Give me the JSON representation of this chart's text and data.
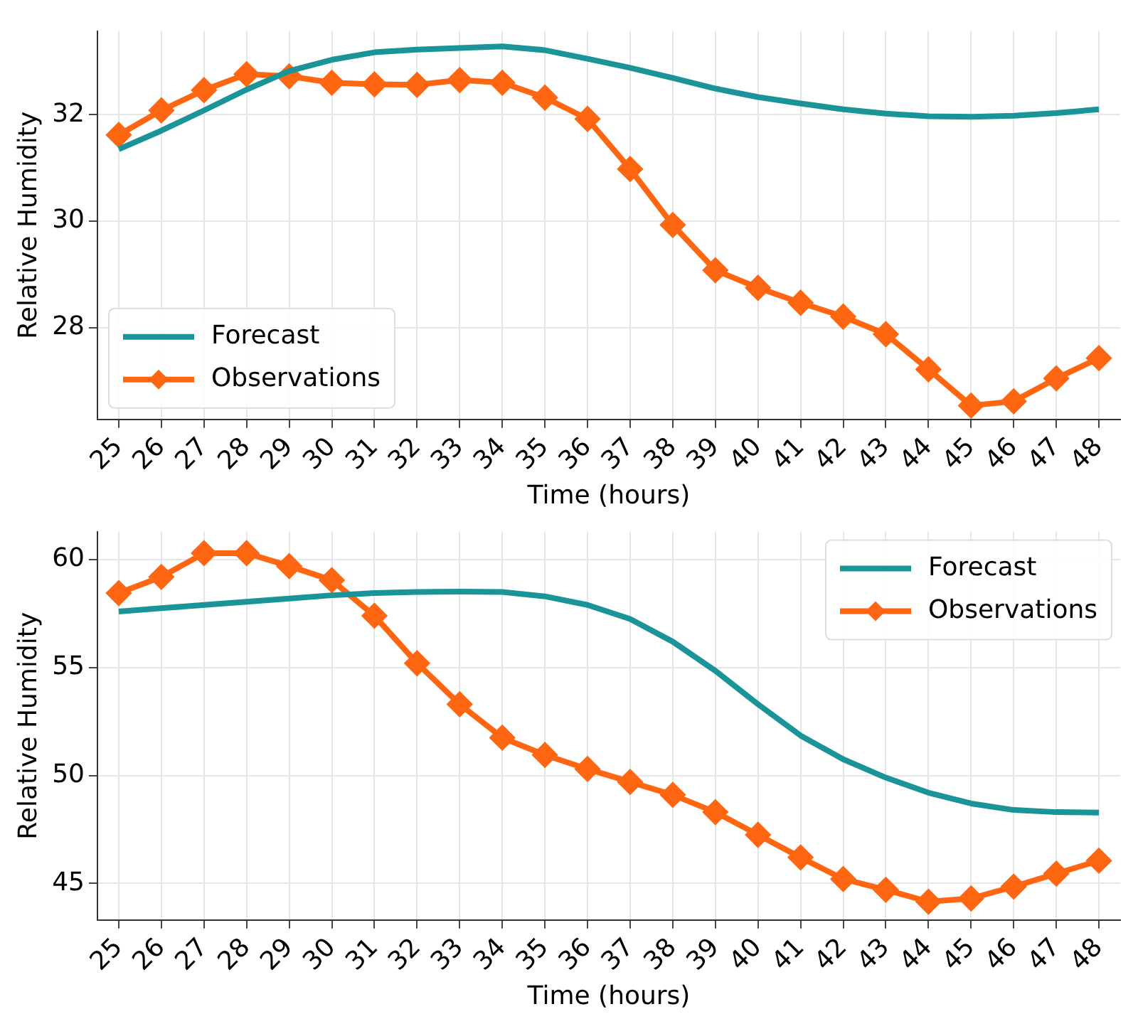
{
  "chart_data": [
    {
      "type": "line",
      "xlabel": "Time (hours)",
      "ylabel": "Relative Humidity",
      "categories": [
        "25",
        "26",
        "27",
        "28",
        "29",
        "30",
        "31",
        "32",
        "33",
        "34",
        "35",
        "36",
        "37",
        "38",
        "39",
        "40",
        "41",
        "42",
        "43",
        "44",
        "45",
        "46",
        "47",
        "48"
      ],
      "ylim": [
        26.28,
        33.57
      ],
      "yticks": [
        28,
        30,
        32
      ],
      "grid": true,
      "legend": "bottom left",
      "series": [
        {
          "name": "Forecast",
          "color": "#1a9399",
          "marker": "none",
          "values": [
            31.35,
            31.7,
            32.08,
            32.47,
            32.82,
            33.03,
            33.17,
            33.22,
            33.25,
            33.28,
            33.21,
            33.05,
            32.88,
            32.69,
            32.49,
            32.33,
            32.21,
            32.1,
            32.02,
            31.97,
            31.96,
            31.98,
            32.03,
            32.1
          ]
        },
        {
          "name": "Observations",
          "color": "#ff6611",
          "marker": "diamond",
          "values": [
            31.62,
            32.08,
            32.46,
            32.76,
            32.72,
            32.6,
            32.57,
            32.56,
            32.65,
            32.6,
            32.32,
            31.92,
            30.98,
            29.93,
            29.08,
            28.75,
            28.47,
            28.21,
            27.88,
            27.22,
            26.54,
            26.62,
            27.05,
            27.43
          ]
        }
      ]
    },
    {
      "type": "line",
      "xlabel": "Time (hours)",
      "ylabel": "Relative Humidity",
      "categories": [
        "25",
        "26",
        "27",
        "28",
        "29",
        "30",
        "31",
        "32",
        "33",
        "34",
        "35",
        "36",
        "37",
        "38",
        "39",
        "40",
        "41",
        "42",
        "43",
        "44",
        "45",
        "46",
        "47",
        "48"
      ],
      "ylim": [
        43.3,
        61.3
      ],
      "yticks": [
        45,
        50,
        55,
        60
      ],
      "grid": true,
      "legend": "top right",
      "series": [
        {
          "name": "Forecast",
          "color": "#1a9399",
          "marker": "none",
          "values": [
            57.6,
            57.75,
            57.9,
            58.05,
            58.2,
            58.35,
            58.45,
            58.5,
            58.52,
            58.5,
            58.3,
            57.9,
            57.25,
            56.2,
            54.85,
            53.3,
            51.85,
            50.75,
            49.9,
            49.2,
            48.7,
            48.4,
            48.3,
            48.28
          ]
        },
        {
          "name": "Observations",
          "color": "#ff6611",
          "marker": "diamond",
          "values": [
            58.45,
            59.2,
            60.3,
            60.3,
            59.7,
            59.05,
            57.4,
            55.2,
            53.3,
            51.75,
            50.95,
            50.3,
            49.7,
            49.1,
            48.3,
            47.25,
            46.2,
            45.2,
            44.7,
            44.15,
            44.3,
            44.85,
            45.45,
            46.05
          ]
        }
      ]
    }
  ]
}
